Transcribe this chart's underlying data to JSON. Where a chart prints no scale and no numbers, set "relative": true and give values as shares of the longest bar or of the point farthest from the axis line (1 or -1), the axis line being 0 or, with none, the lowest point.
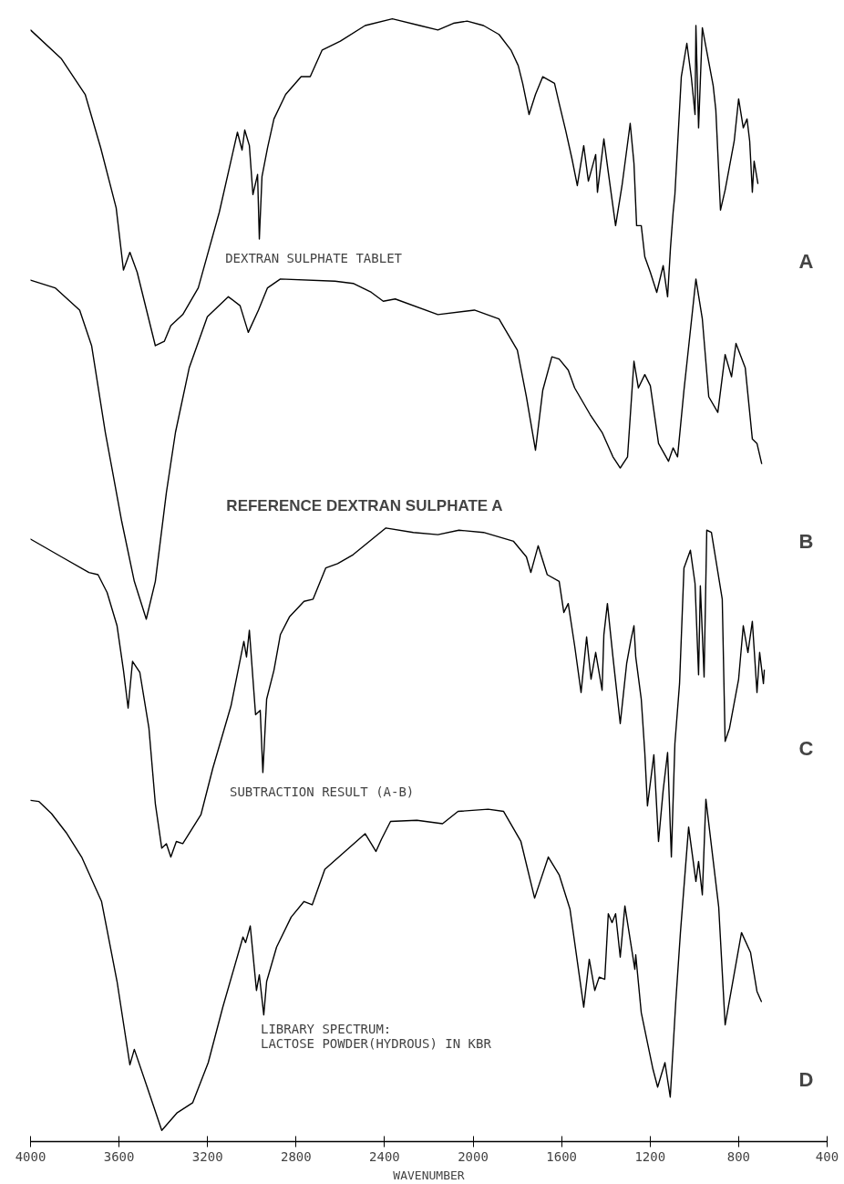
{
  "chart_data": {
    "type": "line",
    "relative": true,
    "xlabel": "WAVENUMBER",
    "xlim": [
      4000,
      400
    ],
    "xticks": [
      4000,
      3600,
      3200,
      2800,
      2400,
      2000,
      1600,
      1200,
      800,
      400
    ],
    "grid": false,
    "marker": "none",
    "line_style": "solid",
    "annotations": [
      "DEXTRAN SULPHATE TABLET",
      "REFERENCE DEXTRAN SULPHATE A",
      "SUBTRACTION RESULT (A-B)",
      "LIBRARY SPECTRUM:\nLACTOSE POWDER(HYDROUS) IN KBR"
    ],
    "series": [
      {
        "name": "A",
        "color": "#000000",
        "x": [
          4000,
          3860,
          3753,
          3683,
          3613,
          3580,
          3551,
          3518,
          3436,
          3395,
          3366,
          3312,
          3242,
          3147,
          3065,
          3044,
          3032,
          3011,
          2995,
          2974,
          2966,
          2954,
          2929,
          2900,
          2847,
          2777,
          2736,
          2682,
          2600,
          2488,
          2365,
          2241,
          2159,
          2089,
          2027,
          1953,
          1883,
          1829,
          1796,
          1776,
          1747,
          1718,
          1685,
          1632,
          1611,
          1582,
          1553,
          1529,
          1500,
          1479,
          1446,
          1438,
          1409,
          1389,
          1356,
          1327,
          1290,
          1273,
          1261,
          1240,
          1224,
          1199,
          1170,
          1141,
          1121,
          1108,
          1096,
          1088,
          1059,
          1034,
          1014,
          997,
          993,
          981,
          964,
          915,
          903,
          882,
          861,
          820,
          800,
          779,
          762,
          750,
          738,
          730,
          713
        ],
        "values": [
          0.99,
          0.964,
          0.932,
          0.884,
          0.83,
          0.774,
          0.79,
          0.772,
          0.706,
          0.71,
          0.724,
          0.734,
          0.758,
          0.826,
          0.898,
          0.882,
          0.9,
          0.886,
          0.842,
          0.86,
          0.802,
          0.858,
          0.884,
          0.91,
          0.932,
          0.948,
          0.948,
          0.972,
          0.98,
          0.994,
          1.0,
          0.994,
          0.99,
          0.996,
          0.998,
          0.994,
          0.986,
          0.972,
          0.958,
          0.942,
          0.914,
          0.932,
          0.948,
          0.942,
          0.924,
          0.9,
          0.874,
          0.85,
          0.886,
          0.854,
          0.878,
          0.844,
          0.892,
          0.862,
          0.814,
          0.85,
          0.906,
          0.87,
          0.814,
          0.814,
          0.786,
          0.772,
          0.754,
          0.778,
          0.75,
          0.794,
          0.826,
          0.842,
          0.948,
          0.978,
          0.948,
          0.914,
          0.994,
          0.902,
          0.992,
          0.94,
          0.918,
          0.828,
          0.846,
          0.89,
          0.928,
          0.902,
          0.91,
          0.89,
          0.844,
          0.872,
          0.852
        ]
      },
      {
        "name": "B",
        "color": "#000000",
        "x": [
          4000,
          3889,
          3778,
          3724,
          3662,
          3588,
          3531,
          3477,
          3436,
          3386,
          3345,
          3283,
          3201,
          3106,
          3053,
          3016,
          2970,
          2929,
          2871,
          2624,
          2542,
          2460,
          2406,
          2352,
          2159,
          1994,
          1883,
          1800,
          1759,
          1718,
          1685,
          1644,
          1611,
          1570,
          1541,
          1471,
          1417,
          1368,
          1335,
          1302,
          1273,
          1253,
          1224,
          1199,
          1162,
          1117,
          1096,
          1076,
          1047,
          1034,
          993,
          964,
          935,
          894,
          861,
          832,
          812,
          770,
          738,
          717,
          696
        ],
        "values": [
          0.765,
          0.758,
          0.738,
          0.706,
          0.628,
          0.548,
          0.494,
          0.46,
          0.494,
          0.574,
          0.628,
          0.686,
          0.732,
          0.75,
          0.742,
          0.718,
          0.738,
          0.758,
          0.766,
          0.764,
          0.762,
          0.754,
          0.746,
          0.748,
          0.734,
          0.738,
          0.73,
          0.702,
          0.66,
          0.612,
          0.666,
          0.696,
          0.694,
          0.684,
          0.668,
          0.644,
          0.628,
          0.606,
          0.596,
          0.606,
          0.692,
          0.668,
          0.68,
          0.67,
          0.618,
          0.602,
          0.614,
          0.606,
          0.666,
          0.69,
          0.766,
          0.73,
          0.66,
          0.646,
          0.698,
          0.678,
          0.708,
          0.686,
          0.622,
          0.618,
          0.6
        ]
      },
      {
        "name": "C",
        "color": "#000000",
        "x": [
          4000,
          3860,
          3736,
          3695,
          3654,
          3609,
          3580,
          3559,
          3539,
          3506,
          3465,
          3436,
          3407,
          3386,
          3366,
          3341,
          3312,
          3230,
          3176,
          3094,
          3036,
          3024,
          3011,
          2983,
          2962,
          2950,
          2933,
          2900,
          2871,
          2830,
          2764,
          2723,
          2666,
          2612,
          2542,
          2394,
          2270,
          2159,
          2064,
          1953,
          1817,
          1759,
          1739,
          1706,
          1665,
          1611,
          1590,
          1570,
          1541,
          1512,
          1487,
          1467,
          1446,
          1417,
          1409,
          1393,
          1368,
          1335,
          1306,
          1286,
          1273,
          1265,
          1240,
          1224,
          1212,
          1183,
          1162,
          1141,
          1121,
          1104,
          1088,
          1067,
          1047,
          1018,
          997,
          981,
          973,
          956,
          944,
          923,
          874,
          861,
          841,
          800,
          779,
          758,
          738,
          717,
          705,
          688,
          684
        ],
        "values": [
          0.532,
          0.516,
          0.502,
          0.5,
          0.484,
          0.454,
          0.414,
          0.38,
          0.422,
          0.412,
          0.362,
          0.294,
          0.254,
          0.258,
          0.246,
          0.26,
          0.258,
          0.284,
          0.326,
          0.382,
          0.44,
          0.426,
          0.45,
          0.374,
          0.378,
          0.322,
          0.388,
          0.414,
          0.446,
          0.462,
          0.476,
          0.478,
          0.506,
          0.51,
          0.518,
          0.542,
          0.538,
          0.536,
          0.54,
          0.538,
          0.53,
          0.516,
          0.502,
          0.526,
          0.5,
          0.494,
          0.466,
          0.474,
          0.436,
          0.394,
          0.444,
          0.406,
          0.43,
          0.396,
          0.446,
          0.474,
          0.426,
          0.366,
          0.42,
          0.442,
          0.454,
          0.426,
          0.388,
          0.34,
          0.292,
          0.338,
          0.26,
          0.306,
          0.34,
          0.246,
          0.348,
          0.402,
          0.506,
          0.522,
          0.492,
          0.41,
          0.49,
          0.408,
          0.54,
          0.538,
          0.478,
          0.35,
          0.362,
          0.406,
          0.454,
          0.43,
          0.458,
          0.394,
          0.43,
          0.402,
          0.414
        ]
      },
      {
        "name": "D",
        "color": "#000000",
        "x": [
          4000,
          3963,
          3905,
          3839,
          3769,
          3679,
          3609,
          3551,
          3531,
          3473,
          3407,
          3337,
          3267,
          3197,
          3131,
          3040,
          3028,
          3007,
          2979,
          2966,
          2946,
          2933,
          2888,
          2822,
          2764,
          2727,
          2670,
          2579,
          2488,
          2439,
          2414,
          2373,
          2254,
          2138,
          2068,
          1932,
          1862,
          1784,
          1722,
          1660,
          1611,
          1562,
          1500,
          1475,
          1450,
          1430,
          1405,
          1389,
          1372,
          1356,
          1335,
          1314,
          1269,
          1265,
          1240,
          1212,
          1187,
          1166,
          1133,
          1109,
          1084,
          1063,
          1026,
          993,
          981,
          964,
          948,
          890,
          861,
          787,
          746,
          717,
          697
        ],
        "values": [
          0.297,
          0.296,
          0.285,
          0.268,
          0.246,
          0.206,
          0.134,
          0.059,
          0.073,
          0.039,
          0.0,
          0.016,
          0.025,
          0.061,
          0.111,
          0.174,
          0.169,
          0.184,
          0.126,
          0.14,
          0.104,
          0.134,
          0.165,
          0.192,
          0.206,
          0.203,
          0.235,
          0.251,
          0.267,
          0.251,
          0.262,
          0.278,
          0.279,
          0.276,
          0.287,
          0.289,
          0.287,
          0.26,
          0.209,
          0.246,
          0.23,
          0.199,
          0.111,
          0.154,
          0.126,
          0.138,
          0.136,
          0.195,
          0.187,
          0.195,
          0.156,
          0.202,
          0.145,
          0.158,
          0.106,
          0.079,
          0.055,
          0.039,
          0.061,
          0.03,
          0.116,
          0.178,
          0.273,
          0.224,
          0.242,
          0.212,
          0.298,
          0.201,
          0.095,
          0.178,
          0.16,
          0.125,
          0.116
        ]
      }
    ]
  }
}
